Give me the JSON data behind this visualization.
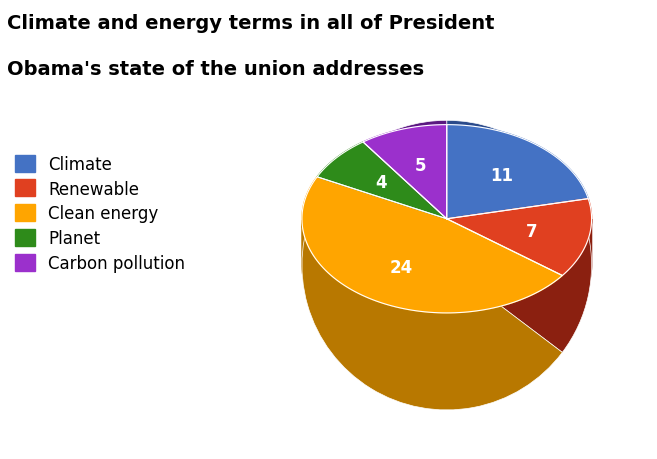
{
  "title_line1": "Climate and energy terms in all of President",
  "title_line2": "Obama's state of the union addresses",
  "labels": [
    "Climate",
    "Renewable",
    "Clean energy",
    "Planet",
    "Carbon pollution"
  ],
  "values": [
    11,
    7,
    24,
    4,
    5
  ],
  "colors": [
    "#4472C4",
    "#E04020",
    "#FFA500",
    "#2E8B1A",
    "#9B30CC"
  ],
  "dark_colors": [
    "#2A4A8A",
    "#8B2010",
    "#B87800",
    "#1A5A0A",
    "#5A1880"
  ],
  "startangle": 90,
  "title_fontsize": 14,
  "label_fontsize": 12,
  "legend_fontsize": 12,
  "bg_color": "#FFFFFF"
}
